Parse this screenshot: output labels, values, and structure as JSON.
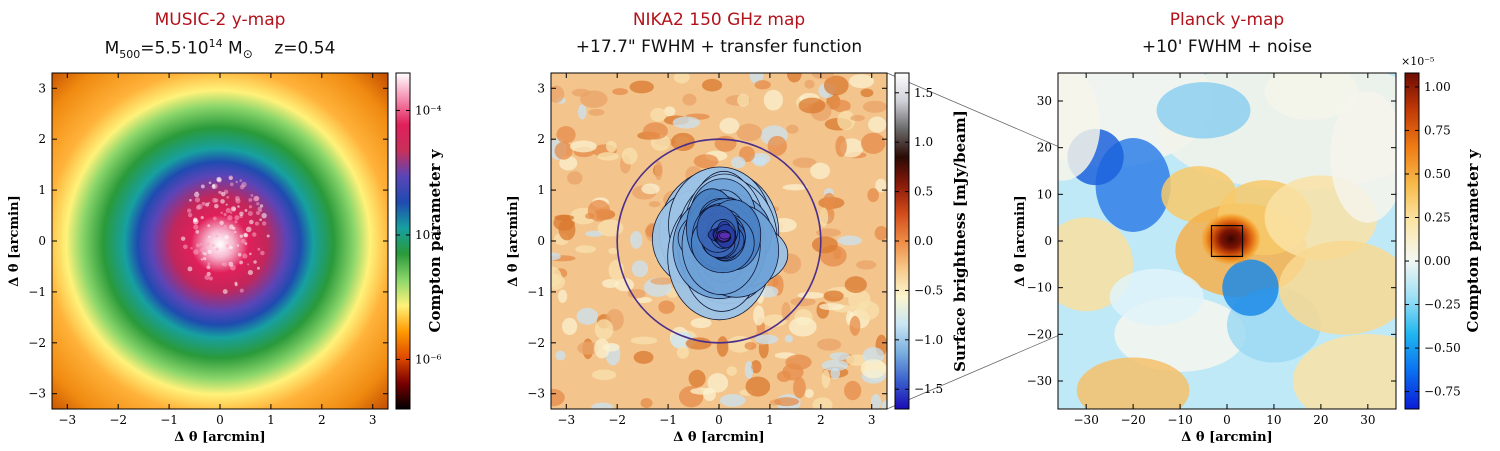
{
  "colors": {
    "title_red": "#b3121b",
    "frame": "#000000",
    "circle": "#4b2f8a",
    "connector": "#666666"
  },
  "panels": [
    {
      "id": "music",
      "title": "MUSIC-2 y-map",
      "subtitle_parts": [
        "M",
        "500",
        "=5.5·10",
        "14",
        " M",
        "⊙",
        "    z=0.54"
      ]
    },
    {
      "id": "nika",
      "title": "NIKA2 150 GHz map",
      "subtitle": "+17.7\" FWHM + transfer function"
    },
    {
      "id": "planck",
      "title": "Planck y-map",
      "subtitle": "+10' FWHM + noise"
    }
  ],
  "chart_data": [
    {
      "type": "heatmap",
      "name": "MUSIC-2 y-map",
      "xlabel": "Δ θ [arcmin]",
      "ylabel": "Δ θ [arcmin]",
      "xlim": [
        -3.3,
        3.3
      ],
      "ylim": [
        -3.3,
        3.3
      ],
      "xticks": [
        -3,
        -2,
        -1,
        0,
        1,
        2,
        3
      ],
      "yticks": [
        -3,
        -2,
        -1,
        0,
        1,
        2,
        3
      ],
      "colorbar": {
        "label": "Compton parameter y",
        "scale": "log",
        "range": [
          4e-07,
          0.0002
        ],
        "ticks": [
          {
            "value": 0.0001,
            "label": "10⁻⁴"
          },
          {
            "value": 1e-05,
            "label": "10⁻⁵"
          },
          {
            "value": 1e-06,
            "label": "10⁻⁶"
          }
        ],
        "colormap": [
          "#000000",
          "#7a0000",
          "#e04a00",
          "#ff9a00",
          "#fff27a",
          "#8bd66b",
          "#2a9a3a",
          "#17a0a0",
          "#1f4bb0",
          "#5a45b8",
          "#c8305a",
          "#e0205a",
          "#f58db0",
          "#ffffff"
        ]
      },
      "grid": false
    },
    {
      "type": "heatmap",
      "name": "NIKA2 150 GHz map",
      "xlabel": "Δ θ [arcmin]",
      "ylabel": "Δ θ [arcmin]",
      "xlim": [
        -3.3,
        3.3
      ],
      "ylim": [
        -3.3,
        3.3
      ],
      "xticks": [
        -3,
        -2,
        -1,
        0,
        1,
        2,
        3
      ],
      "yticks": [
        -3,
        -2,
        -1,
        0,
        1,
        2,
        3
      ],
      "colorbar": {
        "label": "Surface brightness [mJy/beam]",
        "scale": "linear",
        "range": [
          -1.7,
          1.7
        ],
        "ticks": [
          1.5,
          1.0,
          0.5,
          0.0,
          -0.5,
          -1.0,
          -1.5
        ],
        "colormap": [
          "#1a0bb5",
          "#3a5fcd",
          "#78aede",
          "#c8e4f3",
          "#fbf6d0",
          "#f7c98a",
          "#ee8b45",
          "#d14b1a",
          "#8a1a0a",
          "#2a0a05",
          "#6a6a6a",
          "#d0d0d8",
          "#ffffff"
        ]
      },
      "circle_radius_arcmin": 2.0,
      "grid": false
    },
    {
      "type": "heatmap",
      "name": "Planck y-map",
      "xlabel": "Δ θ [arcmin]",
      "ylabel": "Δ θ [arcmin]",
      "xlim": [
        -36,
        36
      ],
      "ylim": [
        -36,
        36
      ],
      "xticks": [
        -30,
        -20,
        -10,
        0,
        10,
        20,
        30
      ],
      "yticks": [
        -30,
        -20,
        -10,
        0,
        10,
        20,
        30
      ],
      "colorbar": {
        "label": "Compton parameter y",
        "scale": "linear",
        "multiplier": "×10⁻⁵",
        "range": [
          -0.85,
          1.08
        ],
        "ticks": [
          1.0,
          0.75,
          0.5,
          0.25,
          0.0,
          -0.25,
          -0.5,
          -0.75
        ],
        "colormap": [
          "#0b1bd6",
          "#0a6ff0",
          "#1fb6f0",
          "#9fe0f5",
          "#f3f7f2",
          "#fbe6a8",
          "#f8bb4d",
          "#ef7d15",
          "#c23a06",
          "#6e0b02"
        ]
      },
      "inset_box_arcmin": [
        -3.3,
        3.3
      ],
      "grid": false
    }
  ]
}
